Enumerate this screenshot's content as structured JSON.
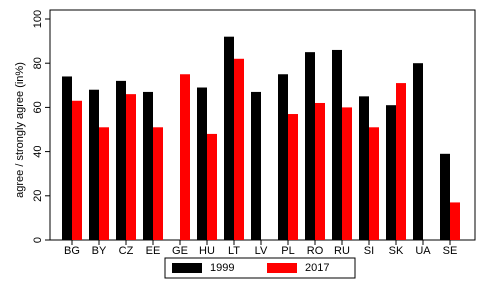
{
  "chart_data": {
    "type": "bar",
    "y_label": "agree / strongly agree (in%)",
    "categories": [
      "BG",
      "BY",
      "CZ",
      "EE",
      "GE",
      "HU",
      "LT",
      "LV",
      "PL",
      "RO",
      "RU",
      "SI",
      "SK",
      "UA",
      "SE"
    ],
    "series": [
      {
        "name": "1999",
        "color": "#000000",
        "values": [
          74,
          68,
          72,
          67,
          null,
          69,
          92,
          67,
          75,
          85,
          86,
          65,
          61,
          80,
          39
        ]
      },
      {
        "name": "2017",
        "color": "#ff0000",
        "values": [
          63,
          51,
          66,
          51,
          75,
          48,
          82,
          null,
          57,
          62,
          60,
          51,
          71,
          null,
          17
        ]
      }
    ],
    "ylim": [
      0,
      100
    ],
    "yticks": [
      0,
      20,
      40,
      60,
      80,
      100
    ],
    "legend": "bottom"
  }
}
